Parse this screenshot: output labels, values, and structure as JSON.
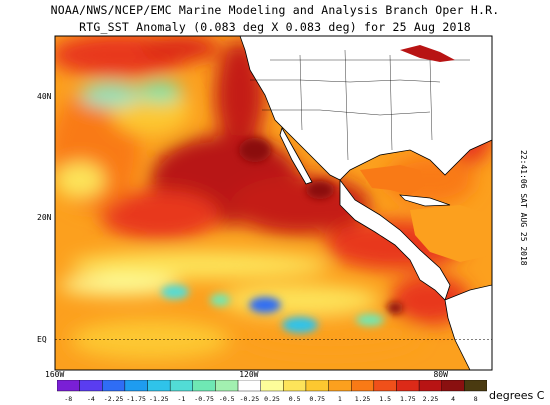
{
  "header": {
    "line1": "NOAA/NWS/NCEP/EMC Marine Modeling and Analysis Branch Oper H.R.",
    "line2": "RTG_SST Anomaly (0.083 deg X 0.083 deg) for 25 Aug 2018"
  },
  "side_stamp": "22:41:06 SAT AUG 25 2018",
  "lat_labels": [
    {
      "text": "40N",
      "lat": 40
    },
    {
      "text": "20N",
      "lat": 20
    },
    {
      "text": "EQ",
      "lat": 0
    }
  ],
  "lon_labels": [
    {
      "text": "160W",
      "lon": -160
    },
    {
      "text": "120W",
      "lon": -120
    },
    {
      "text": "80W",
      "lon": -80
    }
  ],
  "extent": {
    "lon_min": -160,
    "lon_max": -70,
    "lat_min": -5,
    "lat_max": 50
  },
  "colorbar": {
    "units": "degrees C",
    "labels": [
      "-8",
      "-4",
      "-2.25",
      "-1.75",
      "-1.25",
      "-1",
      "-0.75",
      "-0.5",
      "-0.25",
      "0.25",
      "0.5",
      "0.75",
      "1",
      "1.25",
      "1.5",
      "1.75",
      "2.25",
      "4",
      "8"
    ],
    "colors": [
      "#7a1fd6",
      "#5a3df0",
      "#2f6df5",
      "#1e9cf0",
      "#2fc3ea",
      "#52dcd6",
      "#6fe8b4",
      "#a2f0b0",
      "#ffffff",
      "#fdfd9a",
      "#fde45a",
      "#fdc830",
      "#fca01e",
      "#f97a16",
      "#f0501a",
      "#dc2a18",
      "#b81414",
      "#8a1010",
      "#4a3a10"
    ]
  }
}
